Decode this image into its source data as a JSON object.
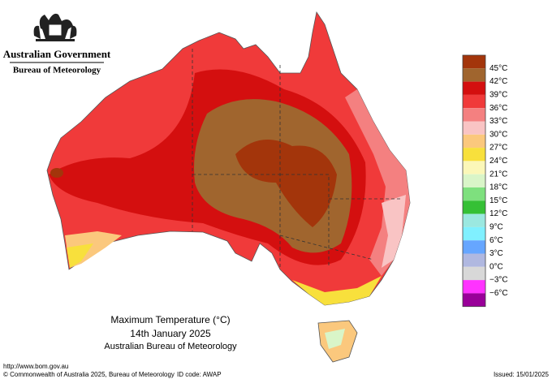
{
  "header": {
    "agency": "Australian Government",
    "bureau": "Bureau of Meteorology"
  },
  "map": {
    "title": "Maximum Temperature (°C)",
    "date": "14th January 2025",
    "source": "Australian Bureau of Meteorology"
  },
  "legend": {
    "colors": [
      "#a3350b",
      "#a0652e",
      "#d40f0f",
      "#f03a3a",
      "#f48080",
      "#f9c4c4",
      "#fbc87d",
      "#f8e03c",
      "#fbf7b8",
      "#d9f5c8",
      "#7ee07e",
      "#35c035",
      "#9be8e0",
      "#80f0ff",
      "#66a6ff",
      "#b0b8e0",
      "#d8d8d8",
      "#ff33ff",
      "#990099"
    ],
    "labels": [
      "45°C",
      "42°C",
      "39°C",
      "36°C",
      "33°C",
      "30°C",
      "27°C",
      "24°C",
      "21°C",
      "18°C",
      "15°C",
      "12°C",
      "9°C",
      "6°C",
      "3°C",
      "0°C",
      "−3°C",
      "−6°C"
    ]
  },
  "footer": {
    "url": "http://www.bom.gov.au",
    "copyright": "© Commonwealth of Australia 2025, Bureau of Meteorology",
    "id_code": "ID code: AWAP",
    "issued": "Issued: 15/01/2025"
  }
}
